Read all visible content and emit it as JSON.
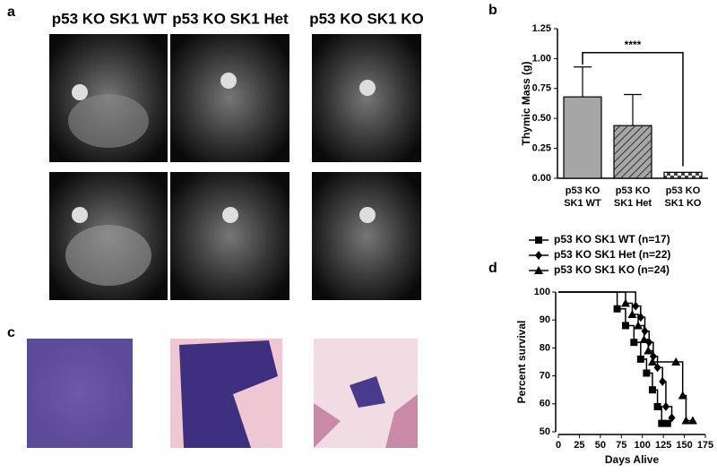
{
  "panel_labels": [
    "a",
    "b",
    "c",
    "d"
  ],
  "mri_titles": [
    "p53 KO SK1 WT",
    "p53 KO SK1 Het",
    "p53 KO SK1 KO"
  ],
  "chart_data": [
    {
      "type": "bar",
      "ylabel": "Thymic Mass (g)",
      "categories": [
        "p53 KO SK1 WT",
        "p53 KO SK1 Het",
        "p53 KO SK1 KO"
      ],
      "values": [
        0.68,
        0.44,
        0.05
      ],
      "errors": [
        0.25,
        0.26,
        0
      ],
      "colors": [
        "#a6a6a6",
        "#a6a6a6",
        "#ffffff"
      ],
      "patterns": [
        "solid",
        "hatch",
        "checker"
      ],
      "annotation": "****",
      "ylim": [
        0,
        1.25
      ],
      "yticks": [
        {
          "value": 0,
          "label": "0.00"
        },
        {
          "value": 0.25,
          "label": "0.25"
        },
        {
          "value": 0.5,
          "label": "0.50"
        },
        {
          "value": 0.75,
          "label": "0.75"
        },
        {
          "value": 1,
          "label": "1.00"
        },
        {
          "value": 1.25,
          "label": "1.25"
        }
      ]
    },
    {
      "type": "survival",
      "xlabel": "Days Alive",
      "ylabel": "Percent survival",
      "xlim": [
        0,
        175
      ],
      "xticks": [
        0,
        25,
        50,
        75,
        100,
        125,
        150,
        175
      ],
      "ylim": [
        50,
        100
      ],
      "yticks": [
        50,
        60,
        70,
        80,
        90,
        100
      ],
      "series": [
        {
          "name": "p53 KO SK1 WT (n=17)",
          "marker": "square",
          "color": "#000000",
          "x": [
            0,
            70,
            80,
            90,
            98,
            105,
            112,
            118,
            123,
            130
          ],
          "values": [
            100,
            94,
            88,
            82,
            76,
            71,
            65,
            59,
            53,
            53
          ]
        },
        {
          "name": "p53 KO SK1 Het (n=22)",
          "marker": "diamond",
          "color": "#000000",
          "x": [
            0,
            92,
            98,
            103,
            108,
            113,
            118,
            124,
            128,
            135
          ],
          "values": [
            100,
            95,
            91,
            86,
            82,
            77,
            73,
            68,
            59,
            55
          ]
        },
        {
          "name": "p53 KO SK1 KO (n=24)",
          "marker": "triangle",
          "color": "#000000",
          "x": [
            0,
            80,
            88,
            95,
            102,
            107,
            112,
            140,
            148,
            152,
            160
          ],
          "values": [
            100,
            96,
            92,
            88,
            83,
            79,
            75,
            75,
            63,
            54,
            54
          ]
        }
      ]
    }
  ]
}
